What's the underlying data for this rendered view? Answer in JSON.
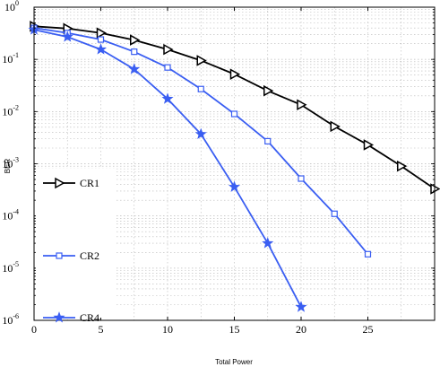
{
  "chart_data": {
    "type": "line",
    "title": "",
    "xlabel": "Total Power",
    "ylabel": "BER",
    "xlim": [
      0,
      30
    ],
    "ylim": [
      1e-06,
      1
    ],
    "yscale": "log",
    "grid": true,
    "legend_position": "left-lower",
    "x_ticks": [
      "0",
      "5",
      "10",
      "15",
      "20",
      "25"
    ],
    "y_ticks": [
      {
        "base": "10",
        "exp": "0"
      },
      {
        "base": "10",
        "exp": "-1"
      },
      {
        "base": "10",
        "exp": "-2"
      },
      {
        "base": "10",
        "exp": "-3"
      },
      {
        "base": "10",
        "exp": "-4"
      },
      {
        "base": "10",
        "exp": "-5"
      },
      {
        "base": "10",
        "exp": "-6"
      }
    ],
    "series": [
      {
        "name": "CR1",
        "color": "#000000",
        "marker": "triangle-right",
        "x": [
          0,
          2.5,
          5,
          7.5,
          10,
          12.5,
          15,
          17.5,
          20,
          22.5,
          25,
          27.5,
          30
        ],
        "y": [
          0.43,
          0.39,
          0.32,
          0.235,
          0.155,
          0.095,
          0.052,
          0.025,
          0.0135,
          0.0052,
          0.0023,
          0.0009,
          0.00033
        ]
      },
      {
        "name": "CR2",
        "color": "#3a5ef2",
        "marker": "square",
        "x": [
          0,
          2.5,
          5,
          7.5,
          10,
          12.5,
          15,
          17.5,
          20,
          22.5,
          25
        ],
        "y": [
          0.4,
          0.32,
          0.24,
          0.14,
          0.07,
          0.027,
          0.009,
          0.0027,
          0.00052,
          0.00011,
          1.85e-05
        ]
      },
      {
        "name": "CR4",
        "color": "#3a5ef2",
        "marker": "star",
        "x": [
          0,
          2.5,
          5,
          7.5,
          10,
          12.5,
          15,
          17.5,
          20
        ],
        "y": [
          0.37,
          0.27,
          0.155,
          0.065,
          0.0175,
          0.0037,
          0.00036,
          3e-05,
          1.8e-06
        ]
      }
    ]
  }
}
